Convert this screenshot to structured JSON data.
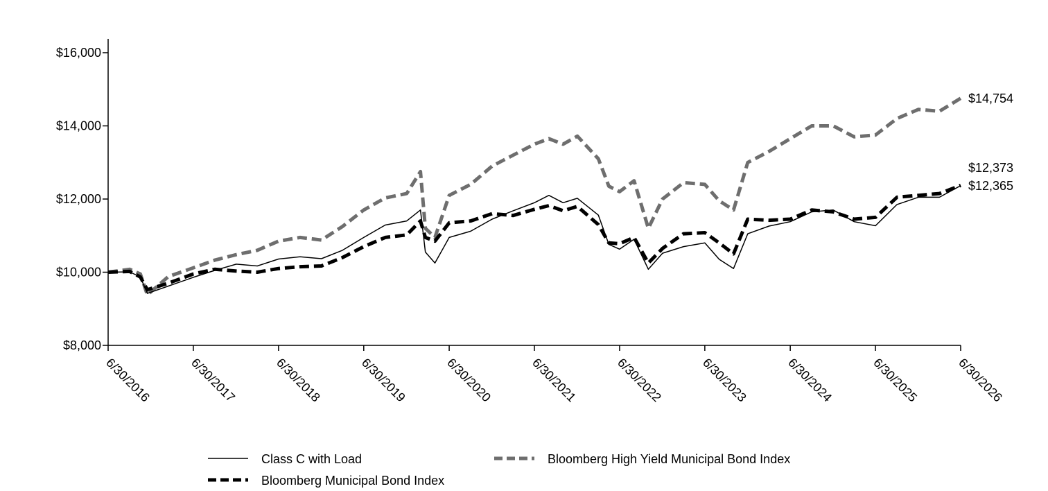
{
  "chart_data": {
    "type": "line",
    "title": "",
    "xlabel": "",
    "ylabel": "",
    "ylim": [
      8000,
      16000
    ],
    "xlim": [
      "6/30/2016",
      "6/30/2026"
    ],
    "y_ticks": [
      "$8,000",
      "$10,000",
      "$12,000",
      "$14,000",
      "$16,000"
    ],
    "y_tick_values": [
      8000,
      10000,
      12000,
      14000,
      16000
    ],
    "x_ticks": [
      "6/30/2016",
      "6/30/2017",
      "6/30/2018",
      "6/30/2019",
      "6/30/2020",
      "6/30/2021",
      "6/30/2022",
      "6/30/2023",
      "6/30/2024",
      "6/30/2025",
      "6/30/2026"
    ],
    "legend_placement": "bottom",
    "grid": false,
    "series": [
      {
        "name": "Class C with Load",
        "style": "solid-thin",
        "color": "#000000",
        "end_label": "$12,365",
        "points": [
          [
            "2016-06-30",
            10000
          ],
          [
            "2016-09-30",
            10010
          ],
          [
            "2016-11-15",
            9870
          ],
          [
            "2016-12-15",
            9420
          ],
          [
            "2017-03-15",
            9620
          ],
          [
            "2017-06-30",
            9860
          ],
          [
            "2017-09-30",
            10050
          ],
          [
            "2017-12-31",
            10220
          ],
          [
            "2018-03-31",
            10170
          ],
          [
            "2018-06-30",
            10360
          ],
          [
            "2018-09-30",
            10420
          ],
          [
            "2018-12-31",
            10370
          ],
          [
            "2019-03-31",
            10600
          ],
          [
            "2019-06-30",
            10950
          ],
          [
            "2019-09-30",
            11290
          ],
          [
            "2019-12-31",
            11400
          ],
          [
            "2020-02-28",
            11700
          ],
          [
            "2020-03-20",
            10550
          ],
          [
            "2020-04-30",
            10250
          ],
          [
            "2020-06-30",
            10950
          ],
          [
            "2020-09-30",
            11120
          ],
          [
            "2020-12-31",
            11450
          ],
          [
            "2021-03-31",
            11680
          ],
          [
            "2021-06-30",
            11900
          ],
          [
            "2021-08-31",
            12100
          ],
          [
            "2021-10-31",
            11900
          ],
          [
            "2021-12-31",
            12020
          ],
          [
            "2022-03-31",
            11560
          ],
          [
            "2022-05-15",
            10760
          ],
          [
            "2022-06-30",
            10630
          ],
          [
            "2022-08-31",
            10900
          ],
          [
            "2022-10-31",
            10080
          ],
          [
            "2022-12-31",
            10520
          ],
          [
            "2023-03-31",
            10700
          ],
          [
            "2023-06-30",
            10800
          ],
          [
            "2023-08-31",
            10350
          ],
          [
            "2023-10-31",
            10100
          ],
          [
            "2023-12-31",
            11050
          ],
          [
            "2024-03-31",
            11260
          ],
          [
            "2024-06-30",
            11380
          ],
          [
            "2024-09-30",
            11650
          ],
          [
            "2024-12-31",
            11700
          ],
          [
            "2025-03-31",
            11380
          ],
          [
            "2025-06-30",
            11270
          ],
          [
            "2025-09-30",
            11850
          ],
          [
            "2025-12-31",
            12050
          ],
          [
            "2026-03-31",
            12050
          ],
          [
            "2026-06-30",
            12365
          ]
        ]
      },
      {
        "name": "Bloomberg Municipal Bond Index",
        "style": "dashed-thick",
        "color": "#000000",
        "end_label": "$12,373",
        "points": [
          [
            "2016-06-30",
            10000
          ],
          [
            "2016-09-30",
            10020
          ],
          [
            "2016-11-15",
            9870
          ],
          [
            "2016-12-15",
            9520
          ],
          [
            "2017-03-15",
            9700
          ],
          [
            "2017-06-30",
            9950
          ],
          [
            "2017-09-30",
            10080
          ],
          [
            "2017-12-31",
            10030
          ],
          [
            "2018-03-31",
            10000
          ],
          [
            "2018-06-30",
            10100
          ],
          [
            "2018-09-30",
            10150
          ],
          [
            "2018-12-31",
            10170
          ],
          [
            "2019-03-31",
            10400
          ],
          [
            "2019-06-30",
            10700
          ],
          [
            "2019-09-30",
            10950
          ],
          [
            "2019-12-31",
            11020
          ],
          [
            "2020-02-28",
            11400
          ],
          [
            "2020-03-20",
            10950
          ],
          [
            "2020-04-30",
            10850
          ],
          [
            "2020-06-30",
            11350
          ],
          [
            "2020-09-30",
            11400
          ],
          [
            "2020-12-31",
            11600
          ],
          [
            "2021-03-31",
            11550
          ],
          [
            "2021-06-30",
            11720
          ],
          [
            "2021-08-31",
            11820
          ],
          [
            "2021-10-31",
            11680
          ],
          [
            "2021-12-31",
            11800
          ],
          [
            "2022-03-31",
            11300
          ],
          [
            "2022-05-15",
            10800
          ],
          [
            "2022-06-30",
            10780
          ],
          [
            "2022-08-31",
            10950
          ],
          [
            "2022-10-31",
            10250
          ],
          [
            "2022-12-31",
            10650
          ],
          [
            "2023-03-31",
            11050
          ],
          [
            "2023-06-30",
            11080
          ],
          [
            "2023-08-31",
            10800
          ],
          [
            "2023-10-31",
            10500
          ],
          [
            "2023-12-31",
            11450
          ],
          [
            "2024-03-31",
            11420
          ],
          [
            "2024-06-30",
            11450
          ],
          [
            "2024-09-30",
            11700
          ],
          [
            "2024-12-31",
            11650
          ],
          [
            "2025-03-31",
            11450
          ],
          [
            "2025-06-30",
            11500
          ],
          [
            "2025-09-30",
            12050
          ],
          [
            "2025-12-31",
            12100
          ],
          [
            "2026-03-31",
            12150
          ],
          [
            "2026-06-30",
            12373
          ]
        ]
      },
      {
        "name": "Bloomberg High Yield Municipal Bond Index",
        "style": "dashed-thick",
        "color": "#6e6e6e",
        "end_label": "$14,754",
        "points": [
          [
            "2016-06-30",
            10000
          ],
          [
            "2016-09-30",
            10080
          ],
          [
            "2016-11-15",
            9950
          ],
          [
            "2016-12-15",
            9380
          ],
          [
            "2017-03-15",
            9880
          ],
          [
            "2017-06-30",
            10120
          ],
          [
            "2017-09-30",
            10330
          ],
          [
            "2017-12-31",
            10480
          ],
          [
            "2018-03-31",
            10600
          ],
          [
            "2018-06-30",
            10850
          ],
          [
            "2018-09-30",
            10950
          ],
          [
            "2018-12-31",
            10880
          ],
          [
            "2019-03-31",
            11250
          ],
          [
            "2019-06-30",
            11700
          ],
          [
            "2019-09-30",
            12030
          ],
          [
            "2019-12-31",
            12150
          ],
          [
            "2020-02-28",
            12750
          ],
          [
            "2020-03-20",
            11200
          ],
          [
            "2020-04-30",
            10950
          ],
          [
            "2020-06-30",
            12100
          ],
          [
            "2020-09-30",
            12400
          ],
          [
            "2020-12-31",
            12900
          ],
          [
            "2021-03-31",
            13200
          ],
          [
            "2021-06-30",
            13500
          ],
          [
            "2021-08-31",
            13650
          ],
          [
            "2021-10-31",
            13500
          ],
          [
            "2021-12-31",
            13720
          ],
          [
            "2022-03-31",
            13100
          ],
          [
            "2022-05-15",
            12350
          ],
          [
            "2022-06-30",
            12200
          ],
          [
            "2022-08-31",
            12500
          ],
          [
            "2022-10-31",
            11200
          ],
          [
            "2022-12-31",
            12000
          ],
          [
            "2023-03-31",
            12450
          ],
          [
            "2023-06-30",
            12400
          ],
          [
            "2023-08-31",
            11950
          ],
          [
            "2023-10-31",
            11700
          ],
          [
            "2023-12-31",
            13000
          ],
          [
            "2024-03-31",
            13300
          ],
          [
            "2024-06-30",
            13650
          ],
          [
            "2024-09-30",
            14000
          ],
          [
            "2024-12-31",
            14000
          ],
          [
            "2025-03-31",
            13700
          ],
          [
            "2025-06-30",
            13750
          ],
          [
            "2025-09-30",
            14200
          ],
          [
            "2025-12-31",
            14450
          ],
          [
            "2026-03-31",
            14400
          ],
          [
            "2026-06-30",
            14754
          ]
        ]
      }
    ]
  },
  "colors": {
    "axis": "#000000",
    "class_c": "#000000",
    "municipal": "#000000",
    "high_yield": "#6e6e6e"
  }
}
